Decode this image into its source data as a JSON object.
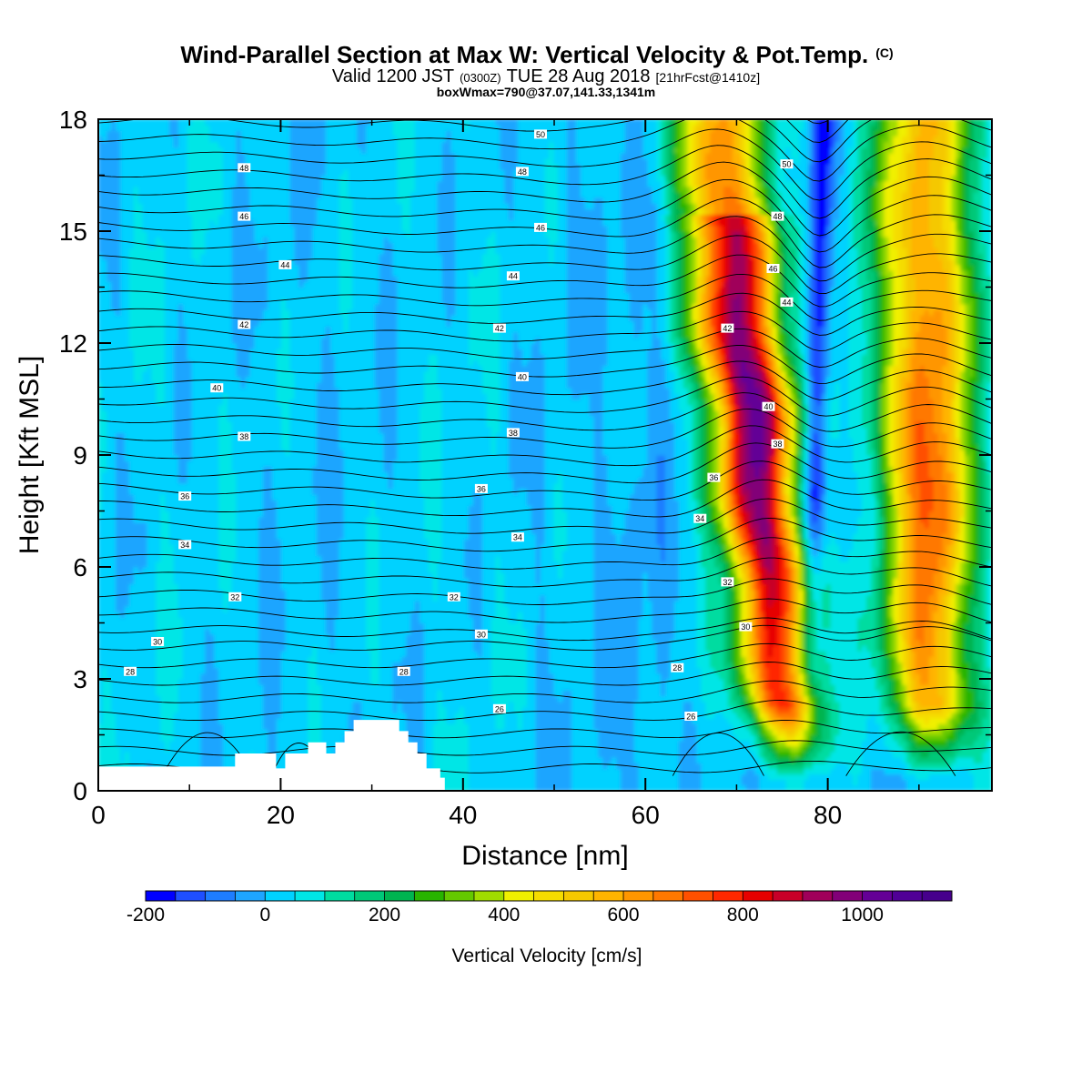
{
  "chart_data": {
    "type": "heatmap",
    "title": "Wind-Parallel Section at Max W: Vertical Velocity & Pot.Temp.",
    "title_mark": "(C)",
    "subtitle_main": "Valid 1200 JST",
    "subtitle_z": "(0300Z)",
    "subtitle_date": "TUE 28 Aug 2018",
    "subtitle_fcst": "[21hrFcst@1410z]",
    "subtitle2": "boxWmax=790@37.07,141.33,1341m",
    "xlabel": "Distance [nm]",
    "ylabel": "Height [Kft MSL]",
    "xlim": [
      0,
      98
    ],
    "ylim": [
      0,
      18
    ],
    "xticks": [
      0,
      20,
      40,
      60,
      80
    ],
    "yticks": [
      0,
      3,
      6,
      9,
      12,
      15,
      18
    ],
    "colorbar": {
      "label": "Vertical Velocity [cm/s]",
      "min": -200,
      "max": 1150,
      "step": 50,
      "ticks": [
        -200,
        0,
        200,
        400,
        600,
        800,
        1000
      ],
      "colors": [
        "#0000ff",
        "#1f4fff",
        "#1e7dff",
        "#1ea5ff",
        "#00d2ff",
        "#00e6e6",
        "#00dca0",
        "#00c878",
        "#00b450",
        "#28b400",
        "#64c800",
        "#a0dc00",
        "#f0f000",
        "#f5dc00",
        "#f5c800",
        "#ffb400",
        "#ff9600",
        "#ff7800",
        "#ff5000",
        "#ff2800",
        "#e60000",
        "#c80028",
        "#a0005a",
        "#820078",
        "#640096",
        "#500096",
        "#46008c"
      ]
    },
    "terrain_kft": [
      [
        0,
        0.65
      ],
      [
        15,
        0.65
      ],
      [
        15,
        1.0
      ],
      [
        19.5,
        1.0
      ],
      [
        19.5,
        0.6
      ],
      [
        20.5,
        0.6
      ],
      [
        20.5,
        1.0
      ],
      [
        23,
        1.0
      ],
      [
        23,
        1.3
      ],
      [
        25,
        1.3
      ],
      [
        25,
        1.0
      ],
      [
        26,
        1.0
      ],
      [
        26,
        1.3
      ],
      [
        27,
        1.3
      ],
      [
        27,
        1.6
      ],
      [
        28,
        1.6
      ],
      [
        28,
        1.9
      ],
      [
        33,
        1.9
      ],
      [
        33,
        1.6
      ],
      [
        34,
        1.6
      ],
      [
        34,
        1.3
      ],
      [
        35,
        1.3
      ],
      [
        35,
        1.0
      ],
      [
        36,
        1.0
      ],
      [
        36,
        0.6
      ],
      [
        37.5,
        0.6
      ],
      [
        37.5,
        0.35
      ],
      [
        38,
        0.35
      ],
      [
        38,
        0
      ]
    ],
    "updraft_cores": [
      {
        "x_center": 72,
        "w_max": 1000
      },
      {
        "x_center": 91,
        "w_max": 700
      }
    ],
    "downdraft_core": {
      "x_center": 79,
      "w_min": -200
    },
    "theta_contours": [
      {
        "value": 26,
        "labels": [
          [
            44,
            2.2
          ],
          [
            65,
            2.0
          ]
        ]
      },
      {
        "value": 28,
        "labels": [
          [
            3.5,
            3.2
          ],
          [
            33.5,
            3.2
          ],
          [
            63.5,
            3.3
          ]
        ]
      },
      {
        "value": 30,
        "labels": [
          [
            6.5,
            4.0
          ],
          [
            42,
            4.2
          ],
          [
            71,
            4.4
          ]
        ]
      },
      {
        "value": 32,
        "labels": [
          [
            15,
            5.2
          ],
          [
            39,
            5.2
          ],
          [
            69,
            5.6
          ]
        ]
      },
      {
        "value": 34,
        "labels": [
          [
            9.5,
            6.6
          ],
          [
            46,
            6.8
          ],
          [
            66,
            7.3
          ]
        ]
      },
      {
        "value": 36,
        "labels": [
          [
            9.5,
            7.9
          ],
          [
            42,
            8.1
          ],
          [
            67.5,
            8.4
          ]
        ]
      },
      {
        "value": 38,
        "labels": [
          [
            16,
            9.5
          ],
          [
            45.5,
            9.6
          ],
          [
            74.5,
            9.3
          ]
        ]
      },
      {
        "value": 40,
        "labels": [
          [
            13,
            10.8
          ],
          [
            46.5,
            11.1
          ],
          [
            73.5,
            10.3
          ]
        ]
      },
      {
        "value": 42,
        "labels": [
          [
            16,
            12.5
          ],
          [
            44,
            12.4
          ],
          [
            69,
            12.4
          ]
        ]
      },
      {
        "value": 44,
        "labels": [
          [
            20.5,
            14.1
          ],
          [
            45.5,
            13.8
          ],
          [
            75.5,
            13.1
          ]
        ]
      },
      {
        "value": 46,
        "labels": [
          [
            16,
            15.4
          ],
          [
            48.5,
            15.1
          ],
          [
            74,
            14.0
          ]
        ]
      },
      {
        "value": 48,
        "labels": [
          [
            16,
            16.7
          ],
          [
            46.5,
            16.6
          ],
          [
            74.5,
            15.4
          ]
        ]
      },
      {
        "value": 50,
        "labels": [
          [
            48.5,
            17.6
          ],
          [
            75.5,
            16.8
          ]
        ]
      }
    ]
  }
}
